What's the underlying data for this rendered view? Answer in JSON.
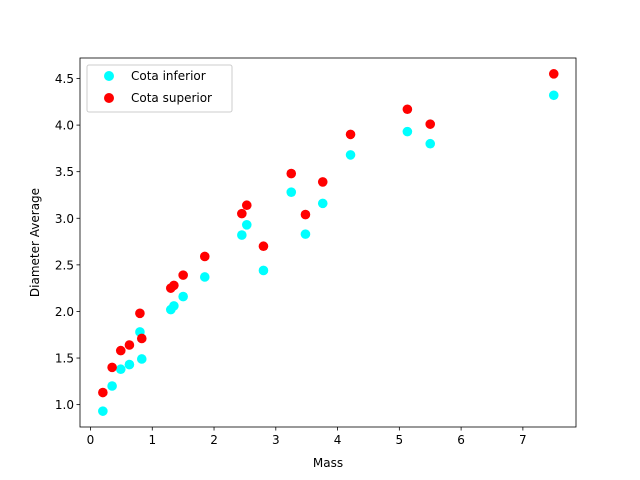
{
  "chart_data": {
    "type": "scatter",
    "xlabel": "Mass",
    "ylabel": "Diameter Average",
    "xlim": [
      -0.17,
      7.86
    ],
    "ylim": [
      0.76,
      4.72
    ],
    "xticks": [
      0,
      1,
      2,
      3,
      4,
      5,
      6,
      7
    ],
    "yticks": [
      1.0,
      1.5,
      2.0,
      2.5,
      3.0,
      3.5,
      4.0,
      4.5
    ],
    "xtick_labels": [
      "0",
      "1",
      "2",
      "3",
      "4",
      "5",
      "6",
      "7"
    ],
    "ytick_labels": [
      "1.0",
      "1.5",
      "2.0",
      "2.5",
      "3.0",
      "3.5",
      "4.0",
      "4.5"
    ],
    "grid": false,
    "legend_position": "upper-left",
    "series": [
      {
        "name": "Cota inferior",
        "color": "#00ffff",
        "points": [
          [
            0.2,
            0.93
          ],
          [
            0.35,
            1.2
          ],
          [
            0.49,
            1.38
          ],
          [
            0.63,
            1.43
          ],
          [
            0.8,
            1.78
          ],
          [
            0.83,
            1.49
          ],
          [
            1.3,
            2.02
          ],
          [
            1.35,
            2.06
          ],
          [
            1.5,
            2.16
          ],
          [
            1.85,
            2.37
          ],
          [
            2.45,
            2.82
          ],
          [
            2.53,
            2.93
          ],
          [
            2.8,
            2.44
          ],
          [
            3.25,
            3.28
          ],
          [
            3.48,
            2.83
          ],
          [
            3.76,
            3.16
          ],
          [
            4.21,
            3.68
          ],
          [
            5.13,
            3.93
          ],
          [
            5.5,
            3.8
          ],
          [
            7.5,
            4.32
          ]
        ]
      },
      {
        "name": "Cota superior",
        "color": "#ff0000",
        "points": [
          [
            0.2,
            1.13
          ],
          [
            0.35,
            1.4
          ],
          [
            0.49,
            1.58
          ],
          [
            0.63,
            1.64
          ],
          [
            0.8,
            1.98
          ],
          [
            0.83,
            1.71
          ],
          [
            1.3,
            2.25
          ],
          [
            1.35,
            2.28
          ],
          [
            1.5,
            2.39
          ],
          [
            1.85,
            2.59
          ],
          [
            2.45,
            3.05
          ],
          [
            2.53,
            3.14
          ],
          [
            2.8,
            2.7
          ],
          [
            3.25,
            3.48
          ],
          [
            3.48,
            3.04
          ],
          [
            3.76,
            3.39
          ],
          [
            4.21,
            3.9
          ],
          [
            5.13,
            4.17
          ],
          [
            5.5,
            4.01
          ],
          [
            7.5,
            4.55
          ]
        ]
      }
    ]
  }
}
